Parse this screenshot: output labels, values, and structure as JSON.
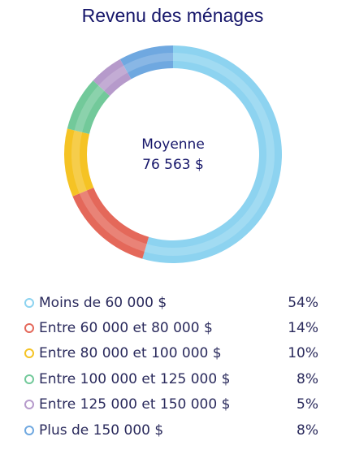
{
  "title": "Revenu des ménages",
  "center": {
    "label": "Moyenne",
    "value": "76 563 $"
  },
  "chart_data": {
    "type": "pie",
    "title": "Revenu des ménages",
    "categories": [
      "Moins de 60 000 $",
      "Entre 60 000 et 80 000 $",
      "Entre 80 000 et 100 000 $",
      "Entre 100 000 et 125 000 $",
      "Entre 125 000 et 150 000 $",
      "Plus de 150 000 $"
    ],
    "values": [
      54,
      14,
      10,
      8,
      5,
      8
    ],
    "value_labels": [
      "54%",
      "14%",
      "10%",
      "8%",
      "5%",
      "8%"
    ],
    "colors": [
      "#8dd3f0",
      "#e4685a",
      "#f5c324",
      "#72c99a",
      "#b69acb",
      "#6fa8e0"
    ],
    "legend_position": "bottom"
  }
}
